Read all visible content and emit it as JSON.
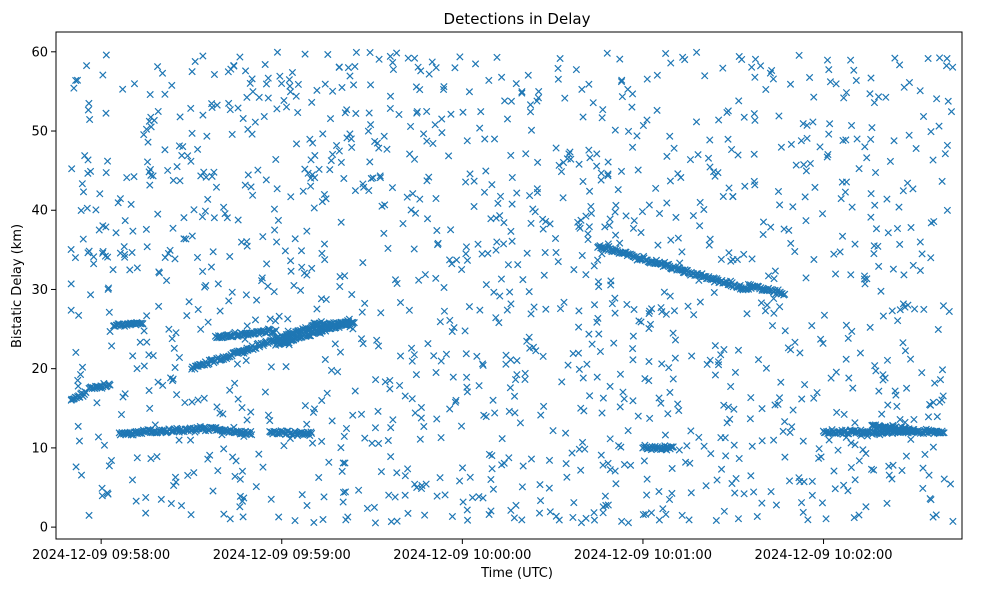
{
  "chart_data": {
    "type": "scatter",
    "title": "Detections in Delay",
    "xlabel": "Time (UTC)",
    "ylabel": "Bistatic Delay (km)",
    "marker": "x",
    "color": "#1f77b4",
    "grid": false,
    "xlim": [
      "2024-12-09 09:57:45",
      "2024-12-09 10:02:46"
    ],
    "ylim": [
      -1.5,
      62.5
    ],
    "xticks": [
      {
        "value": "2024-12-09 09:58:00",
        "label": "2024-12-09 09:58:00"
      },
      {
        "value": "2024-12-09 09:59:00",
        "label": "2024-12-09 09:59:00"
      },
      {
        "value": "2024-12-09 10:00:00",
        "label": "2024-12-09 10:00:00"
      },
      {
        "value": "2024-12-09 10:01:00",
        "label": "2024-12-09 10:01:00"
      },
      {
        "value": "2024-12-09 10:02:00",
        "label": "2024-12-09 10:02:00"
      }
    ],
    "yticks": [
      0,
      10,
      20,
      30,
      40,
      50,
      60
    ],
    "x_range": [
      "2024-12-09 09:57:50",
      "2024-12-09 10:02:43"
    ],
    "tracks": [
      {
        "x": [
          "2024-12-09 09:57:50",
          "2024-12-09 09:57:55"
        ],
        "y": [
          16.0,
          17.0
        ]
      },
      {
        "x": [
          "2024-12-09 09:57:56",
          "2024-12-09 09:58:03"
        ],
        "y": [
          17.5,
          18.0
        ]
      },
      {
        "x": [
          "2024-12-09 09:58:04",
          "2024-12-09 09:58:14"
        ],
        "y": [
          25.5,
          25.7
        ]
      },
      {
        "x": [
          "2024-12-09 09:58:06",
          "2024-12-09 09:58:38"
        ],
        "y": [
          11.8,
          12.5
        ]
      },
      {
        "x": [
          "2024-12-09 09:58:38",
          "2024-12-09 09:58:50"
        ],
        "y": [
          12.3,
          11.8
        ]
      },
      {
        "x": [
          "2024-12-09 09:58:30",
          "2024-12-09 09:59:12"
        ],
        "y": [
          20.0,
          25.5
        ]
      },
      {
        "x": [
          "2024-12-09 09:58:38",
          "2024-12-09 09:58:58"
        ],
        "y": [
          24.0,
          24.8
        ]
      },
      {
        "x": [
          "2024-12-09 09:58:58",
          "2024-12-09 09:59:22"
        ],
        "y": [
          23.0,
          25.8
        ]
      },
      {
        "x": [
          "2024-12-09 09:58:56",
          "2024-12-09 09:59:10"
        ],
        "y": [
          12.0,
          11.8
        ]
      },
      {
        "x": [
          "2024-12-09 09:59:10",
          "2024-12-09 09:59:24"
        ],
        "y": [
          25.5,
          25.8
        ]
      },
      {
        "x": [
          "2024-12-09 10:00:45",
          "2024-12-09 10:01:35"
        ],
        "y": [
          35.5,
          30.0
        ]
      },
      {
        "x": [
          "2024-12-09 10:01:35",
          "2024-12-09 10:01:47"
        ],
        "y": [
          30.5,
          29.5
        ]
      },
      {
        "x": [
          "2024-12-09 10:01:00",
          "2024-12-09 10:01:10"
        ],
        "y": [
          10.0,
          10.0
        ]
      },
      {
        "x": [
          "2024-12-09 10:02:00",
          "2024-12-09 10:02:40"
        ],
        "y": [
          12.0,
          12.0
        ]
      },
      {
        "x": [
          "2024-12-09 10:02:16",
          "2024-12-09 10:02:30"
        ],
        "y": [
          12.8,
          12.3
        ]
      }
    ],
    "noise": {
      "y_range": [
        0.5,
        60
      ],
      "approx_count": 1400
    }
  }
}
